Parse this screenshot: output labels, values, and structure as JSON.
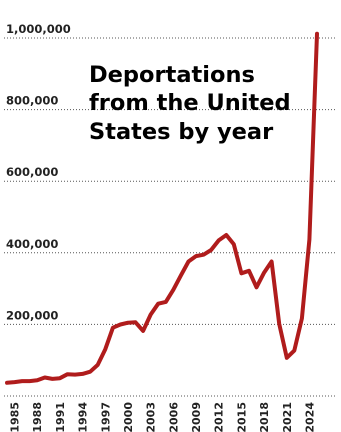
{
  "chart_data": {
    "type": "line",
    "title": [
      "Deportations",
      "from the United",
      "States by year"
    ],
    "xlabel": "",
    "ylabel": "",
    "xlim": [
      1984,
      2025
    ],
    "ylim": [
      0,
      1000000
    ],
    "grid": true,
    "y_ticks": [
      {
        "value": 200000,
        "label": "200,000"
      },
      {
        "value": 400000,
        "label": "400,000"
      },
      {
        "value": 600000,
        "label": "600,000"
      },
      {
        "value": 800000,
        "label": "800,000"
      },
      {
        "value": 1000000,
        "label": "1,000,000"
      }
    ],
    "x_ticks": [
      {
        "value": 1985,
        "label": "1985"
      },
      {
        "value": 1988,
        "label": "1988"
      },
      {
        "value": 1991,
        "label": "1991"
      },
      {
        "value": 1994,
        "label": "1994"
      },
      {
        "value": 1997,
        "label": "1997"
      },
      {
        "value": 2000,
        "label": "2000"
      },
      {
        "value": 2003,
        "label": "2003"
      },
      {
        "value": 2006,
        "label": "2006"
      },
      {
        "value": 2009,
        "label": "2009"
      },
      {
        "value": 2012,
        "label": "2012"
      },
      {
        "value": 2015,
        "label": "2015"
      },
      {
        "value": 2018,
        "label": "2018"
      },
      {
        "value": 2021,
        "label": "2021"
      },
      {
        "value": 2024,
        "label": "2024"
      }
    ],
    "series": [
      {
        "color": "#b01c1c",
        "x": [
          1984,
          1985,
          1986,
          1987,
          1988,
          1989,
          1990,
          1991,
          1992,
          1993,
          1994,
          1995,
          1996,
          1997,
          1998,
          1999,
          2000,
          2001,
          2002,
          2003,
          2004,
          2005,
          2006,
          2007,
          2008,
          2009,
          2010,
          2011,
          2012,
          2013,
          2014,
          2015,
          2016,
          2017,
          2018,
          2019,
          2020,
          2021,
          2022,
          2023,
          2024,
          2025
        ],
        "values": [
          20000,
          22000,
          25000,
          25000,
          27000,
          35000,
          31000,
          33000,
          44000,
          43000,
          45000,
          51000,
          70000,
          114000,
          174000,
          183000,
          188000,
          189000,
          165000,
          211000,
          241000,
          246000,
          280000,
          320000,
          359000,
          374000,
          378000,
          391000,
          418000,
          433000,
          407000,
          326000,
          333000,
          287000,
          328000,
          359000,
          185000,
          90000,
          110000,
          200000,
          420000,
          995000
        ]
      }
    ]
  }
}
